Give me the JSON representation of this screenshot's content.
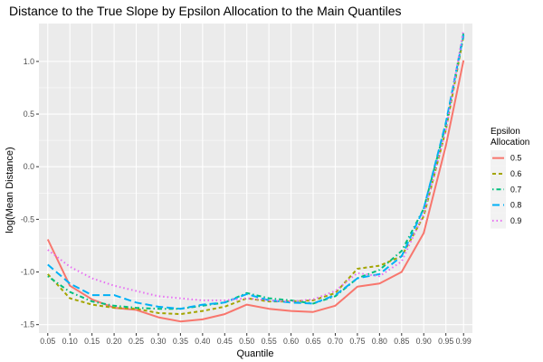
{
  "chart_data": {
    "type": "line",
    "title": "Distance to the True Slope by Epsilon Allocation to the Main Quantiles",
    "xlabel": "Quantile",
    "ylabel": "log(Mean Distance)",
    "x": [
      0.05,
      0.1,
      0.15,
      0.2,
      0.25,
      0.3,
      0.35,
      0.4,
      0.45,
      0.5,
      0.55,
      0.6,
      0.65,
      0.7,
      0.75,
      0.8,
      0.85,
      0.9,
      0.95,
      0.99
    ],
    "x_tick_labels": [
      "0.05",
      "0.10",
      "0.15",
      "0.20",
      "0.25",
      "0.30",
      "0.35",
      "0.40",
      "0.45",
      "0.50",
      "0.55",
      "0.60",
      "0.65",
      "0.70",
      "0.75",
      "0.80",
      "0.85",
      "0.90",
      "0.95",
      "0.99"
    ],
    "y_ticks": [
      -1.5,
      -1.0,
      -0.5,
      0.0,
      0.5,
      1.0
    ],
    "y_tick_labels": [
      "-1.5",
      "-1.0",
      "-0.5",
      "0.0",
      "0.5",
      "1.0"
    ],
    "xlim": [
      0.03,
      1.01
    ],
    "ylim": [
      -1.58,
      1.36
    ],
    "grid": true,
    "legend": {
      "title": "Epsilon\nAllocation",
      "position": "right"
    },
    "series": [
      {
        "name": "0.5",
        "color": "#F8766D",
        "dash": "solid",
        "values": [
          -0.69,
          -1.13,
          -1.26,
          -1.34,
          -1.36,
          -1.43,
          -1.47,
          -1.45,
          -1.4,
          -1.31,
          -1.35,
          -1.37,
          -1.38,
          -1.32,
          -1.14,
          -1.11,
          -1.0,
          -0.63,
          0.2,
          1.01
        ]
      },
      {
        "name": "0.6",
        "color": "#A3A500",
        "dash": "dashed",
        "values": [
          -1.02,
          -1.25,
          -1.31,
          -1.34,
          -1.35,
          -1.39,
          -1.4,
          -1.37,
          -1.33,
          -1.25,
          -1.28,
          -1.28,
          -1.27,
          -1.2,
          -0.97,
          -0.94,
          -0.85,
          -0.47,
          0.35,
          1.24
        ]
      },
      {
        "name": "0.7",
        "color": "#00BF7D",
        "dash": "dotdash",
        "values": [
          -1.04,
          -1.19,
          -1.28,
          -1.32,
          -1.34,
          -1.35,
          -1.35,
          -1.32,
          -1.29,
          -1.2,
          -1.25,
          -1.27,
          -1.3,
          -1.23,
          -1.06,
          -0.98,
          -0.8,
          -0.4,
          0.4,
          1.27
        ]
      },
      {
        "name": "0.8",
        "color": "#00B0F6",
        "dash": "longdash",
        "values": [
          -0.93,
          -1.11,
          -1.22,
          -1.22,
          -1.29,
          -1.33,
          -1.35,
          -1.31,
          -1.29,
          -1.21,
          -1.27,
          -1.29,
          -1.3,
          -1.22,
          -1.06,
          -1.02,
          -0.85,
          -0.4,
          0.42,
          1.25
        ]
      },
      {
        "name": "0.9",
        "color": "#E76BF3",
        "dash": "dotted",
        "values": [
          -0.79,
          -0.95,
          -1.06,
          -1.13,
          -1.18,
          -1.23,
          -1.25,
          -1.27,
          -1.27,
          -1.25,
          -1.27,
          -1.28,
          -1.26,
          -1.18,
          -1.01,
          -1.04,
          -0.9,
          -0.45,
          0.35,
          1.3
        ]
      }
    ]
  }
}
